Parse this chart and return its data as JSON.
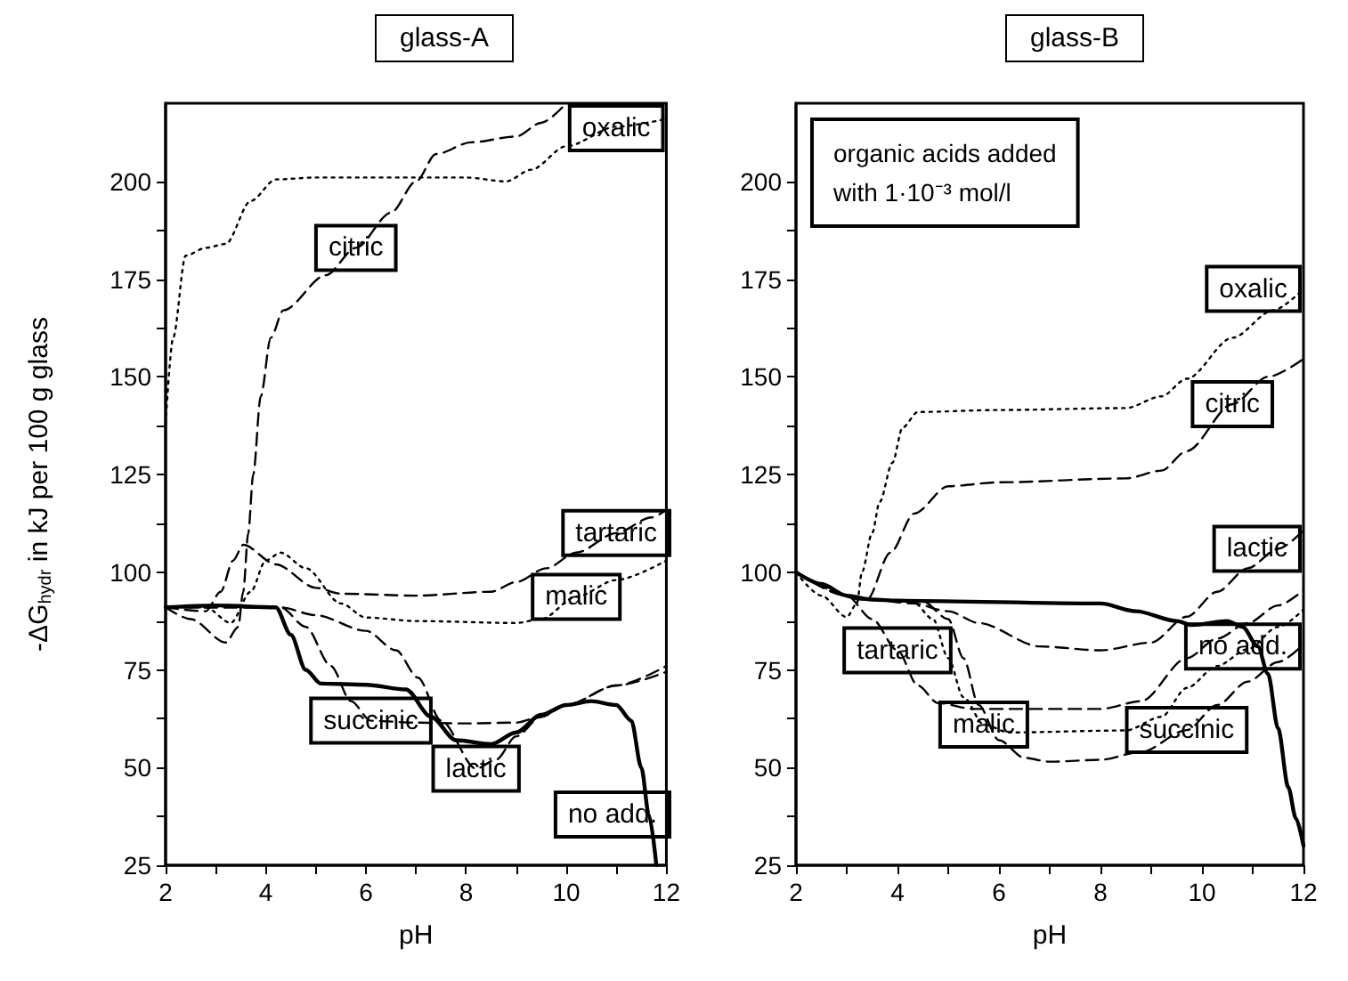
{
  "chart_data": [
    {
      "type": "line",
      "title": "glass-A",
      "xlabel": "pH",
      "ylabel": "-ΔG$_{hydr}$ in kJ per 100 g glass",
      "xlim": [
        2,
        12
      ],
      "ylim": [
        25,
        220
      ],
      "xticks": [
        2,
        4,
        6,
        8,
        10,
        12
      ],
      "yticks": [
        25,
        50,
        75,
        100,
        125,
        150,
        175,
        200
      ],
      "marker": "none",
      "series": [
        {
          "color": "#000000",
          "line_style": "solid",
          "x": [
            2,
            3,
            4.2,
            4.5,
            4.8,
            5.1,
            6,
            6.8,
            7.3,
            7.8,
            8.5,
            9,
            9.5,
            10,
            10.5,
            11,
            11.3,
            11.5,
            11.65,
            11.8
          ],
          "values": [
            91,
            91.5,
            91,
            84,
            75,
            71.5,
            71.2,
            70,
            63,
            57,
            56,
            59,
            63.5,
            66,
            67,
            66,
            62,
            50,
            38,
            25
          ]
        },
        {
          "color": "#000000",
          "line_style": "dotted",
          "x": [
            2,
            2.15,
            2.4,
            2.8,
            3.2,
            3.7,
            4.2,
            5,
            6,
            7,
            8,
            8.8,
            9.3,
            10,
            11,
            12
          ],
          "values": [
            138,
            160,
            181,
            183,
            184,
            195,
            200.5,
            201,
            201,
            201,
            201,
            200,
            203,
            209,
            214,
            216
          ]
        },
        {
          "color": "#000000",
          "line_style": "dashed",
          "x": [
            2,
            2.5,
            3.2,
            3.45,
            3.55,
            3.65,
            3.75,
            3.9,
            4.1,
            4.35,
            5.2,
            5.8,
            6.5,
            7,
            7.4,
            8.1,
            9,
            9.5,
            10
          ],
          "values": [
            91,
            88,
            82,
            86,
            95,
            110,
            125,
            145,
            160,
            167,
            176,
            183,
            192,
            200,
            207,
            210,
            211.5,
            215,
            220
          ]
        },
        {
          "color": "#000000",
          "line_style": "dashed",
          "x": [
            2,
            2.8,
            3.1,
            3.35,
            3.55,
            4.2,
            5,
            5.5,
            7,
            8.5,
            9,
            9.6,
            10.2,
            11,
            11.7,
            12
          ],
          "values": [
            91,
            90,
            95,
            103,
            107,
            102,
            96,
            94.5,
            94,
            95,
            97.5,
            101,
            105,
            110,
            114,
            116
          ]
        },
        {
          "color": "#000000",
          "line_style": "dotted",
          "x": [
            2,
            2.8,
            3.3,
            3.7,
            4,
            4.3,
            4.8,
            5.5,
            6,
            7,
            9,
            9.5,
            10.2,
            11,
            12
          ],
          "values": [
            91,
            91,
            87,
            95,
            103,
            105,
            101,
            92,
            88.4,
            87.5,
            87,
            88,
            93.7,
            98,
            103
          ]
        },
        {
          "color": "#000000",
          "line_style": "dashed",
          "x": [
            2,
            4.3,
            5,
            6,
            6.6,
            7.04,
            7.5,
            8.2,
            8.6,
            9,
            9.5,
            10,
            11,
            12
          ],
          "values": [
            91,
            91,
            89,
            85,
            80,
            73,
            62,
            49.7,
            52,
            58,
            63,
            66,
            71,
            76
          ]
        },
        {
          "color": "#000000",
          "line_style": "dashed",
          "x": [
            2,
            4.3,
            4.8,
            5.3,
            5.7,
            6.1,
            7,
            8,
            9,
            9.5,
            10,
            11,
            12
          ],
          "values": [
            91,
            91,
            86,
            76,
            67,
            62,
            61.5,
            61.3,
            61.5,
            63,
            66,
            71,
            74.5
          ]
        }
      ],
      "annotations": [
        {
          "text": "oxalic",
          "x": 11,
          "y": 214
        },
        {
          "text": "citric",
          "x": 5.8,
          "y": 183
        },
        {
          "text": "tartaric",
          "x": 11,
          "y": 110
        },
        {
          "text": "malic",
          "x": 10.2,
          "y": 93.7
        },
        {
          "text": "lactic",
          "x": 8.2,
          "y": 49.7
        },
        {
          "text": "succinic",
          "x": 6.1,
          "y": 62
        },
        {
          "text": "no add.",
          "x": 11.65,
          "y": 38
        }
      ]
    },
    {
      "type": "line",
      "title": "glass-B",
      "xlabel": "pH",
      "xlim": [
        2,
        12
      ],
      "ylim": [
        25,
        220
      ],
      "xticks": [
        2,
        4,
        6,
        8,
        10,
        12
      ],
      "yticks": [
        25,
        50,
        75,
        100,
        125,
        150,
        175,
        200
      ],
      "marker": "none",
      "series": [
        {
          "color": "#000000",
          "line_style": "solid",
          "x": [
            2,
            2.5,
            3,
            3.5,
            4,
            8,
            8.7,
            9.5,
            9.8,
            10.5,
            10.8,
            11.1,
            11.3,
            11.5,
            11.7,
            11.85,
            12
          ],
          "values": [
            100,
            97,
            94,
            93,
            92.7,
            92,
            90,
            87.5,
            86.5,
            87.5,
            86,
            81,
            74,
            60,
            45,
            37,
            30
          ]
        },
        {
          "color": "#000000",
          "line_style": "dotted",
          "x": [
            2,
            2.5,
            3,
            3.2,
            3.3,
            3.5,
            3.65,
            3.9,
            4.1,
            4.4,
            6,
            8.5,
            9.2,
            9.7,
            10.6,
            11.4,
            12
          ],
          "values": [
            100,
            94,
            88.5,
            92,
            100,
            110,
            118,
            128,
            137,
            141,
            141.5,
            142,
            145,
            149.5,
            160,
            167,
            172.5
          ]
        },
        {
          "color": "#000000",
          "line_style": "dashed",
          "x": [
            2,
            3,
            3.4,
            3.86,
            4.33,
            5,
            6,
            8.5,
            9.2,
            9.7,
            10.6,
            11.3,
            12
          ],
          "values": [
            100,
            94,
            93,
            105,
            115,
            122,
            123,
            124,
            126,
            131,
            143,
            150,
            154.6
          ]
        },
        {
          "color": "#000000",
          "line_style": "dashed",
          "x": [
            2,
            3,
            3.5,
            4.3,
            5,
            5.6,
            6.8,
            8,
            9,
            9.7,
            10.3,
            10.9,
            11.5,
            12
          ],
          "values": [
            100,
            94,
            93,
            92,
            90,
            87,
            81,
            80,
            82,
            88.6,
            95,
            101,
            106,
            110.7
          ]
        },
        {
          "color": "#000000",
          "line_style": "dashed",
          "x": [
            2,
            2.5,
            3,
            3.5,
            4,
            4.4,
            4.8,
            5.5,
            8,
            8.8,
            9.7,
            10.3,
            10.9,
            11.5,
            12
          ],
          "values": [
            100,
            97,
            94,
            88,
            80,
            71,
            66.5,
            65,
            65,
            67,
            78,
            83,
            87,
            91.5,
            95.4
          ]
        },
        {
          "color": "#000000",
          "line_style": "dotted",
          "x": [
            2,
            3.3,
            4.3,
            4.7,
            5,
            5.3,
            5.7,
            6.2,
            8.5,
            9.2,
            9.7,
            10.3,
            10.9,
            11.5,
            12
          ],
          "values": [
            100,
            93,
            92.5,
            88,
            78,
            68,
            61,
            59,
            59.5,
            63,
            70.4,
            76,
            80.3,
            86,
            90.4
          ]
        },
        {
          "color": "#000000",
          "line_style": "dashed",
          "x": [
            2,
            3.3,
            4.5,
            5,
            5.3,
            5.6,
            6,
            6.5,
            7,
            8,
            8.8,
            9.7,
            10.3,
            10.9,
            11.5,
            12
          ],
          "values": [
            100,
            93,
            92.5,
            88,
            78,
            66,
            57,
            52.5,
            51.5,
            52,
            54,
            59.6,
            66,
            72,
            77,
            81.6
          ]
        }
      ],
      "annotations": [
        "organic acids added\nwith 1·10⁻³ mol/l",
        {
          "text": "oxalic",
          "x": 12,
          "y": 172.5
        },
        {
          "text": "citric",
          "x": 10.6,
          "y": 143
        },
        {
          "text": "lactic",
          "x": 11.5,
          "y": 106
        },
        {
          "text": "tartaric",
          "x": 4,
          "y": 80
        },
        {
          "text": "malic",
          "x": 5.7,
          "y": 61
        },
        {
          "text": "succinic",
          "x": 9.7,
          "y": 59.6
        },
        {
          "text": "no add.",
          "x": 11.1,
          "y": 81
        }
      ]
    }
  ]
}
